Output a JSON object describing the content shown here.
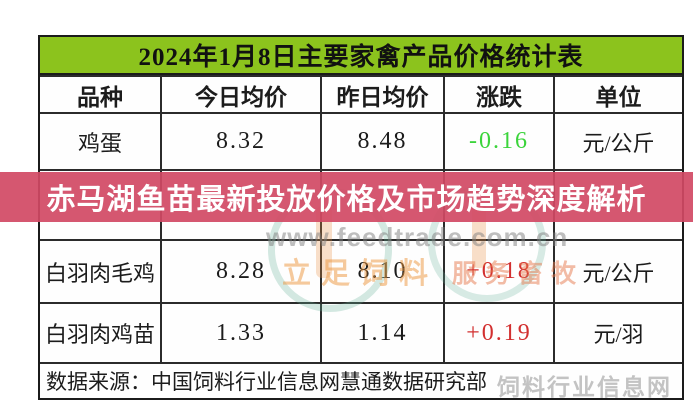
{
  "page": {
    "background": "#ffffff"
  },
  "table": {
    "title": "2024年1月8日主要家禽产品价格统计表",
    "title_bg": "#8cc31d",
    "border_color": "#1b1b1b",
    "columns": [
      "品种",
      "今日均价",
      "昨日均价",
      "涨跌",
      "单位"
    ],
    "rows": [
      {
        "name": "鸡蛋",
        "today": "8.32",
        "yesterday": "8.48",
        "change": "-0.16",
        "change_color": "#3bd43b",
        "unit": "元/公斤"
      },
      {
        "name": "",
        "today": "",
        "yesterday": "",
        "change": "",
        "change_color": "",
        "unit": ""
      },
      {
        "name": "白羽肉毛鸡",
        "today": "8.28",
        "yesterday": "8.10",
        "change": "+0.18",
        "change_color": "#d22f2f",
        "unit": "元/公斤"
      },
      {
        "name": "白羽肉鸡苗",
        "today": "1.33",
        "yesterday": "1.14",
        "change": "+0.19",
        "change_color": "#d22f2f",
        "unit": "元/羽"
      }
    ],
    "footer": "数据来源：中国饲料行业信息网慧通数据研究部"
  },
  "banner": {
    "text": "赤马湖鱼苗最新投放价格及市场趋势深度解析",
    "bg": "rgba(209,73,100,0.92)",
    "text_color": "#ffffff"
  },
  "watermarks": {
    "url": "www.feedtrade.com.cn",
    "slogan_left": "立足饲料",
    "slogan_right": "服务畜牧",
    "corner": "饲料行业信息网"
  },
  "chart_data": {
    "type": "table",
    "title": "2024年1月8日主要家禽产品价格统计表",
    "columns": [
      "品种",
      "今日均价",
      "昨日均价",
      "涨跌",
      "单位"
    ],
    "rows": [
      [
        "鸡蛋",
        "8.32",
        "8.48",
        "-0.16",
        "元/公斤"
      ],
      [
        "白羽肉毛鸡",
        "8.28",
        "8.10",
        "+0.18",
        "元/公斤"
      ],
      [
        "白羽肉鸡苗",
        "1.33",
        "1.14",
        "+0.19",
        "元/羽"
      ]
    ],
    "change_colors": {
      "negative": "#3bd43b",
      "positive": "#d22f2f"
    },
    "source_note": "数据来源：中国饲料行业信息网慧通数据研究部",
    "overlay_headline": "赤马湖鱼苗最新投放价格及市场趋势深度解析"
  }
}
